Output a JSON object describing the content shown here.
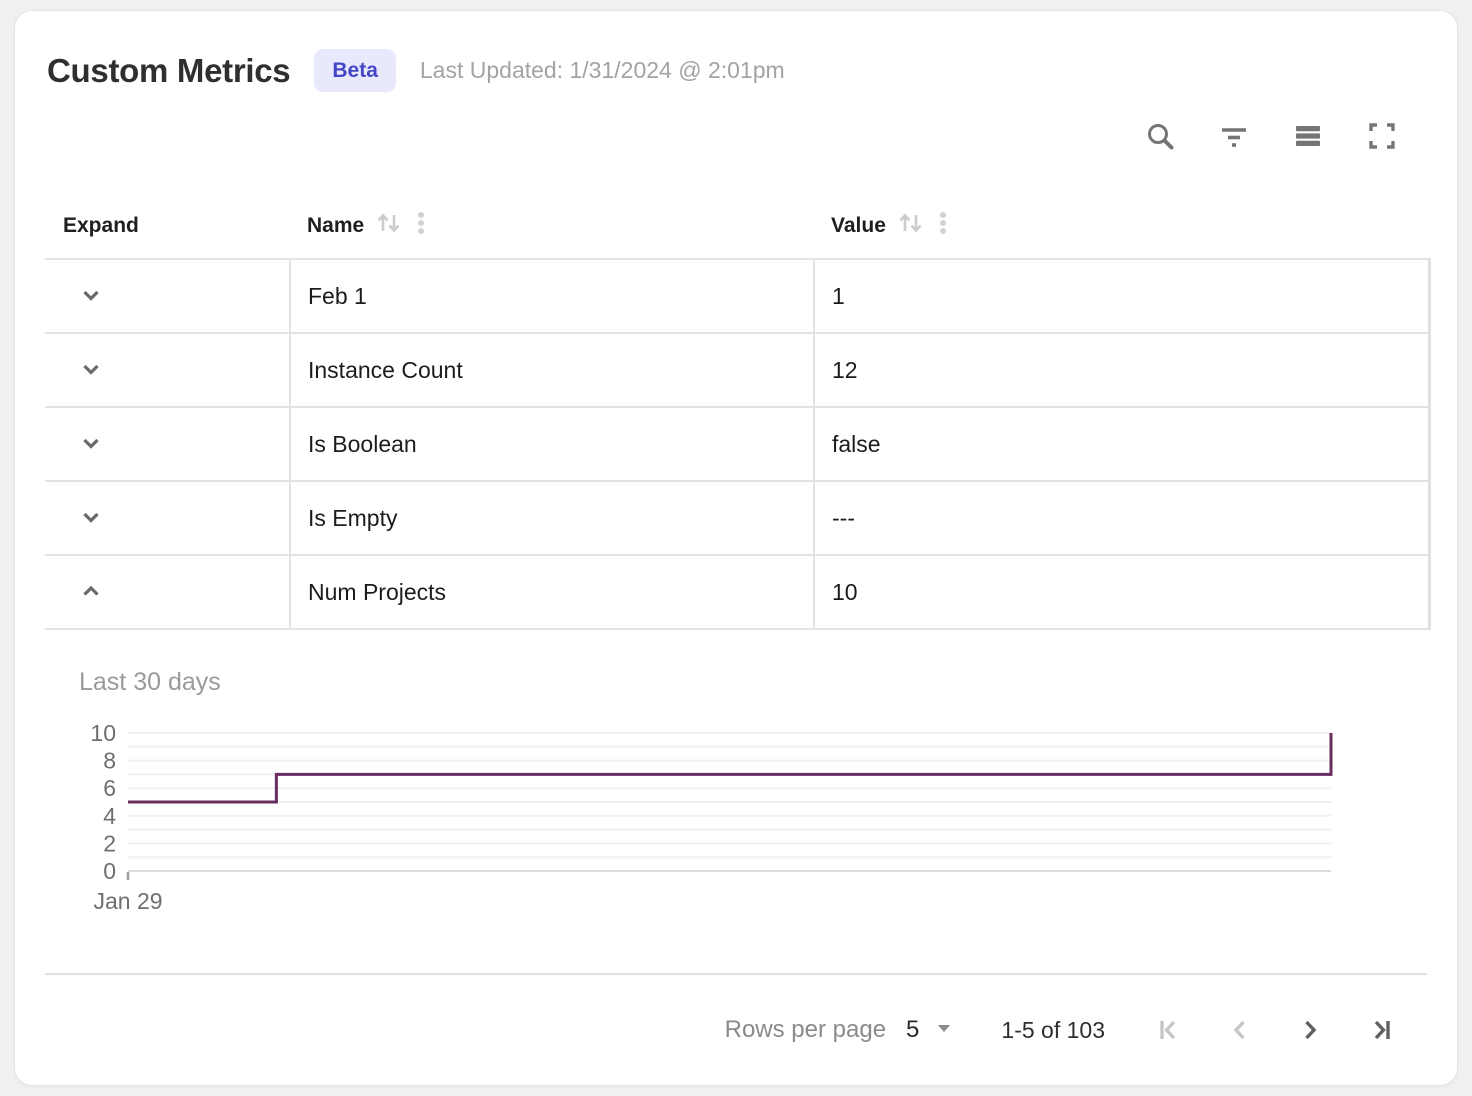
{
  "header": {
    "title": "Custom Metrics",
    "badge": "Beta",
    "last_updated": "Last Updated: 1/31/2024 @ 2:01pm"
  },
  "toolbar": {
    "icons": [
      "search",
      "filter",
      "density",
      "fullscreen"
    ]
  },
  "table": {
    "columns": [
      {
        "label": "Expand",
        "sortable": false
      },
      {
        "label": "Name",
        "sortable": true
      },
      {
        "label": "Value",
        "sortable": true
      }
    ],
    "rows": [
      {
        "name": "Feb 1",
        "value": "1",
        "expanded": false
      },
      {
        "name": "Instance Count",
        "value": "12",
        "expanded": false
      },
      {
        "name": "Is Boolean",
        "value": "false",
        "expanded": false
      },
      {
        "name": "Is Empty",
        "value": "---",
        "expanded": false
      },
      {
        "name": "Num Projects",
        "value": "10",
        "expanded": true
      }
    ]
  },
  "chart_data": {
    "type": "line",
    "subtype": "step",
    "title": "Last 30 days",
    "xlabel": "",
    "ylabel": "",
    "x_axis": {
      "range_days": [
        0,
        30
      ],
      "tick_labels": [
        {
          "label": "Jan 29",
          "x": 0
        }
      ]
    },
    "y_axis": {
      "range": [
        0,
        10
      ],
      "ticks": [
        0,
        2,
        4,
        6,
        8,
        10
      ],
      "gridline_step": 1
    },
    "grid": true,
    "legend": false,
    "series": [
      {
        "name": "Num Projects",
        "color": "#672d5e",
        "points": [
          {
            "x": 0,
            "y": 5
          },
          {
            "x": 3.7,
            "y": 5
          },
          {
            "x": 3.7,
            "y": 7
          },
          {
            "x": 30,
            "y": 7
          },
          {
            "x": 30,
            "y": 10
          }
        ]
      }
    ]
  },
  "pagination": {
    "rows_per_page_label": "Rows per page",
    "rows_per_page_value": "5",
    "range_label": "1-5 of 103",
    "first_page_disabled": true,
    "prev_page_disabled": true,
    "next_page_disabled": false,
    "last_page_disabled": false
  },
  "colors": {
    "line": "#672d5e",
    "badge_bg": "#e8e9fc",
    "badge_text": "#4447c3",
    "border": "#e3e3e3",
    "gridline": "#f0f0f0",
    "axis_line": "#dcdcdc",
    "text_primary": "#1c1c1c",
    "text_muted": "#9a9a9a",
    "icon_gray": "#757575",
    "icon_disabled": "#c6c6c6"
  }
}
